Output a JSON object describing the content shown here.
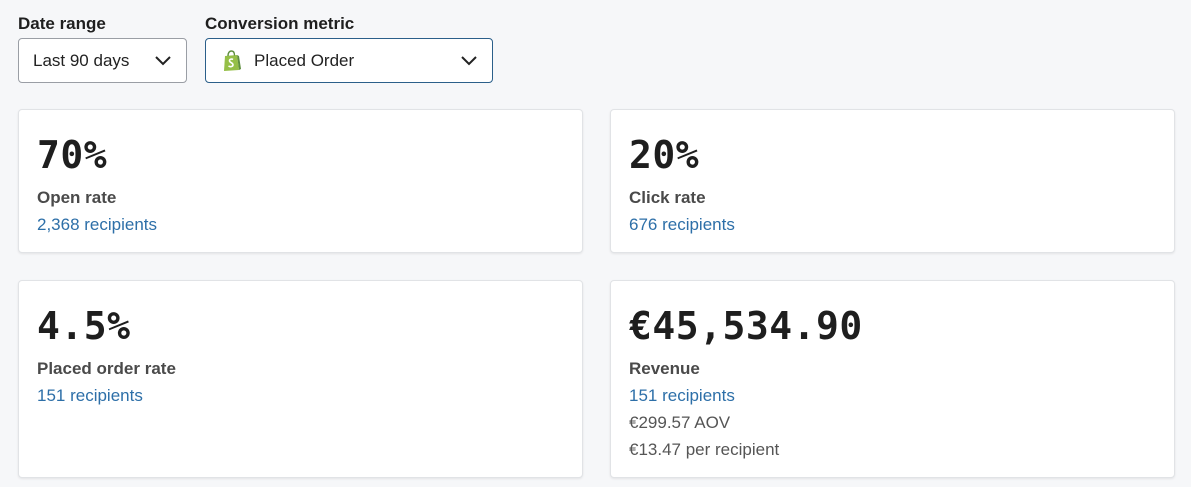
{
  "filters": {
    "date_range": {
      "label": "Date range",
      "value": "Last 90 days"
    },
    "conversion_metric": {
      "label": "Conversion metric",
      "value": "Placed Order",
      "icon": "shopify-icon"
    }
  },
  "cards": {
    "open": {
      "value": "70%",
      "label": "Open rate",
      "recipients": "2,368 recipients"
    },
    "click": {
      "value": "20%",
      "label": "Click rate",
      "recipients": "676 recipients"
    },
    "order": {
      "value": "4.5%",
      "label": "Placed order rate",
      "recipients": "151 recipients"
    },
    "revenue": {
      "value": "€45,534.90",
      "label": "Revenue",
      "recipients": "151 recipients",
      "aov": "€299.57 AOV",
      "per_recipient": "€13.47 per recipient"
    }
  },
  "colors": {
    "link": "#2d6fa8",
    "shopify_green": "#5e8e3e"
  }
}
